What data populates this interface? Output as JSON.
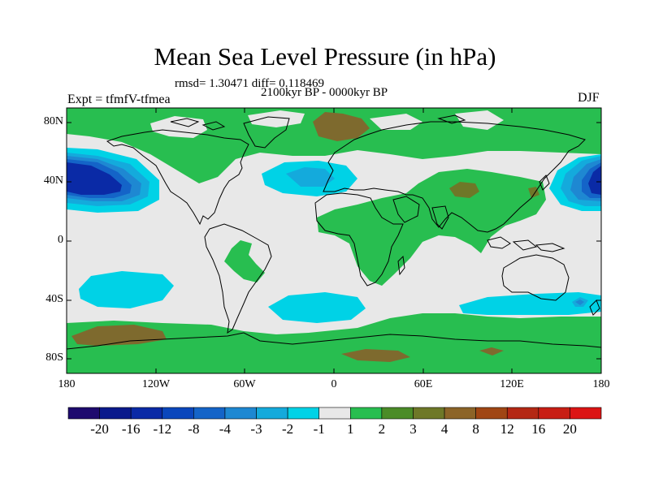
{
  "title": "Mean Sea Level Pressure (in hPa)",
  "stats": "rmsd= 1.30471 diff= 0.118469",
  "period": "2100kyr BP - 0000kyr BP",
  "experiment": "Expt = tfmfV-tfmea",
  "season": "DJF",
  "lat_labels": [
    "80N",
    "40N",
    "0",
    "40S",
    "80S"
  ],
  "lon_labels": [
    "180",
    "120W",
    "60W",
    "0",
    "60E",
    "120E",
    "180"
  ],
  "colorbar": {
    "colors": [
      "#1e0a6e",
      "#0a1a8c",
      "#0a2aa6",
      "#0a46bc",
      "#1464c8",
      "#1e88d2",
      "#14aadc",
      "#00d2e6",
      "#e8e8e8",
      "#28be50",
      "#4b8c28",
      "#6e7828",
      "#8c6428",
      "#a04614",
      "#b42814",
      "#c81e14",
      "#dc1414"
    ],
    "labels": [
      "-20",
      "-16",
      "-12",
      "-8",
      "-4",
      "-3",
      "-2",
      "-1",
      "1",
      "2",
      "3",
      "4",
      "8",
      "12",
      "16",
      "20"
    ]
  },
  "field_colors": {
    "ocean_neutral": "#e8e8e8",
    "green": "#28be50",
    "dark_green": "#5a7828",
    "brown": "#7e6a2e",
    "cyan_light": "#00d2e6",
    "cyan_mid": "#14aadc",
    "blue_mid": "#1e88d2",
    "blue_dark": "#1464c8",
    "navy": "#0a2aa6"
  }
}
